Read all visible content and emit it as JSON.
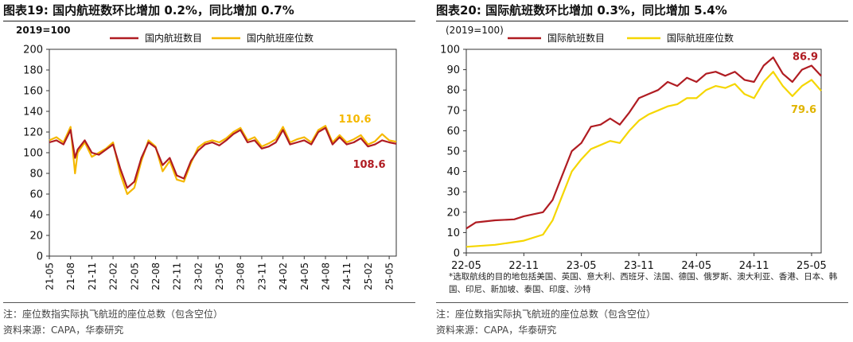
{
  "charts": [
    {
      "fig_title": "图表19:  国内航班数环比增加 0.2%，同比增加 0.7%",
      "note": "注：座位数指实际执飞航班的座位总数（包含空位）",
      "source": "资料来源：CAPA，华泰研究",
      "colors": {
        "flights": "#b01c22",
        "seats": "#f5b800"
      },
      "chart_data": {
        "type": "line",
        "ylabel": "2019=100",
        "ylim": [
          0,
          200
        ],
        "yticks": [
          0,
          20,
          40,
          60,
          80,
          100,
          120,
          140,
          160,
          180,
          200
        ],
        "xlim": [
          "2021-05",
          "2025-06"
        ],
        "xtick_labels": [
          "21-05",
          "21-08",
          "21-11",
          "22-02",
          "22-05",
          "22-08",
          "22-11",
          "23-02",
          "23-05",
          "23-08",
          "23-11",
          "24-02",
          "24-05",
          "24-08",
          "24-11",
          "25-02",
          "25-05"
        ],
        "legend": {
          "placement": "top-center",
          "entries": [
            "国内航班数目",
            "国内航班座位数"
          ]
        },
        "series": [
          {
            "name": "国内航班数目",
            "color": "#b01c22",
            "points": [
              [
                "2021-05",
                110
              ],
              [
                "2021-06",
                112
              ],
              [
                "2021-07",
                108
              ],
              [
                "2021-08",
                122
              ],
              [
                "2021-08-20",
                95
              ],
              [
                "2021-09",
                103
              ],
              [
                "2021-10",
                112
              ],
              [
                "2021-11",
                100
              ],
              [
                "2021-12",
                98
              ],
              [
                "2022-01",
                103
              ],
              [
                "2022-02",
                108
              ],
              [
                "2022-03",
                85
              ],
              [
                "2022-04",
                66
              ],
              [
                "2022-05",
                72
              ],
              [
                "2022-06",
                95
              ],
              [
                "2022-07",
                110
              ],
              [
                "2022-08",
                105
              ],
              [
                "2022-09",
                88
              ],
              [
                "2022-10",
                95
              ],
              [
                "2022-11",
                78
              ],
              [
                "2022-12",
                75
              ],
              [
                "2023-01",
                92
              ],
              [
                "2023-02",
                102
              ],
              [
                "2023-03",
                108
              ],
              [
                "2023-04",
                110
              ],
              [
                "2023-05",
                107
              ],
              [
                "2023-06",
                112
              ],
              [
                "2023-07",
                118
              ],
              [
                "2023-08",
                122
              ],
              [
                "2023-09",
                110
              ],
              [
                "2023-10",
                112
              ],
              [
                "2023-11",
                104
              ],
              [
                "2023-12",
                106
              ],
              [
                "2024-01",
                110
              ],
              [
                "2024-02",
                122
              ],
              [
                "2024-03",
                108
              ],
              [
                "2024-04",
                110
              ],
              [
                "2024-05",
                112
              ],
              [
                "2024-06",
                108
              ],
              [
                "2024-07",
                120
              ],
              [
                "2024-08",
                124
              ],
              [
                "2024-09",
                108
              ],
              [
                "2024-10",
                115
              ],
              [
                "2024-11",
                108
              ],
              [
                "2024-12",
                110
              ],
              [
                "2025-01",
                114
              ],
              [
                "2025-02",
                106
              ],
              [
                "2025-03",
                108
              ],
              [
                "2025-04",
                112
              ],
              [
                "2025-05",
                110
              ],
              [
                "2025-06",
                108.6
              ]
            ]
          },
          {
            "name": "国内航班座位数",
            "color": "#f5b800",
            "points": [
              [
                "2021-05",
                112
              ],
              [
                "2021-06",
                115
              ],
              [
                "2021-07",
                110
              ],
              [
                "2021-08",
                125
              ],
              [
                "2021-08-20",
                80
              ],
              [
                "2021-09",
                100
              ],
              [
                "2021-10",
                110
              ],
              [
                "2021-11",
                96
              ],
              [
                "2021-12",
                100
              ],
              [
                "2022-01",
                104
              ],
              [
                "2022-02",
                110
              ],
              [
                "2022-03",
                80
              ],
              [
                "2022-04",
                60
              ],
              [
                "2022-05",
                66
              ],
              [
                "2022-06",
                92
              ],
              [
                "2022-07",
                112
              ],
              [
                "2022-08",
                106
              ],
              [
                "2022-09",
                82
              ],
              [
                "2022-10",
                92
              ],
              [
                "2022-11",
                74
              ],
              [
                "2022-12",
                72
              ],
              [
                "2023-01",
                90
              ],
              [
                "2023-02",
                105
              ],
              [
                "2023-03",
                110
              ],
              [
                "2023-04",
                112
              ],
              [
                "2023-05",
                110
              ],
              [
                "2023-06",
                114
              ],
              [
                "2023-07",
                120
              ],
              [
                "2023-08",
                124
              ],
              [
                "2023-09",
                112
              ],
              [
                "2023-10",
                115
              ],
              [
                "2023-11",
                106
              ],
              [
                "2023-12",
                109
              ],
              [
                "2024-01",
                113
              ],
              [
                "2024-02",
                125
              ],
              [
                "2024-03",
                110
              ],
              [
                "2024-04",
                113
              ],
              [
                "2024-05",
                115
              ],
              [
                "2024-06",
                110
              ],
              [
                "2024-07",
                122
              ],
              [
                "2024-08",
                126
              ],
              [
                "2024-09",
                110
              ],
              [
                "2024-10",
                117
              ],
              [
                "2024-11",
                110
              ],
              [
                "2024-12",
                113
              ],
              [
                "2025-01",
                117
              ],
              [
                "2025-02",
                108
              ],
              [
                "2025-03",
                111
              ],
              [
                "2025-04",
                118
              ],
              [
                "2025-05",
                112
              ],
              [
                "2025-06",
                110.6
              ]
            ]
          }
        ],
        "annotations": [
          {
            "text": "110.6",
            "series": "国内航班座位数",
            "value": 110.6,
            "date": "2025-06"
          },
          {
            "text": "108.6",
            "series": "国内航班数目",
            "value": 108.6,
            "date": "2025-06"
          }
        ]
      }
    },
    {
      "fig_title": "图表20:  国际航班数环比增加 0.3%，同比增加 5.4%",
      "note": "注：座位数指实际执飞航班的座位总数（包含空位）",
      "source": "资料来源：CAPA，华泰研究",
      "footnote": "*选取航线的目的地包括美国、英国、意大利、西班牙、法国、德国、俄罗斯、澳大利亚、香港、日本、韩国、印尼、新加坡、泰国、印度、沙特",
      "colors": {
        "flights": "#b01c22",
        "seats": "#f5d600"
      },
      "chart_data": {
        "type": "line",
        "ylabel": "(2019=100)",
        "ylim": [
          0,
          100
        ],
        "yticks": [
          0,
          10,
          20,
          30,
          40,
          50,
          60,
          70,
          80,
          90,
          100
        ],
        "xlim": [
          "2022-05",
          "2025-06"
        ],
        "xtick_labels": [
          "22-05",
          "22-11",
          "23-05",
          "23-11",
          "24-05",
          "24-11",
          "25-05"
        ],
        "legend": {
          "placement": "top-center",
          "entries": [
            "国际航班数目",
            "国际航班座位数"
          ]
        },
        "series": [
          {
            "name": "国际航班数目",
            "color": "#b01c22",
            "points": [
              [
                "2022-05",
                12
              ],
              [
                "2022-06",
                15
              ],
              [
                "2022-08",
                16
              ],
              [
                "2022-10",
                16.5
              ],
              [
                "2022-11",
                18
              ],
              [
                "2023-01",
                20
              ],
              [
                "2023-02",
                26
              ],
              [
                "2023-03",
                38
              ],
              [
                "2023-04",
                50
              ],
              [
                "2023-05",
                54
              ],
              [
                "2023-06",
                62
              ],
              [
                "2023-07",
                63
              ],
              [
                "2023-08",
                66
              ],
              [
                "2023-09",
                63
              ],
              [
                "2023-10",
                69
              ],
              [
                "2023-11",
                76
              ],
              [
                "2023-12",
                78
              ],
              [
                "2024-01",
                80
              ],
              [
                "2024-02",
                84
              ],
              [
                "2024-03",
                82
              ],
              [
                "2024-04",
                86
              ],
              [
                "2024-05",
                84
              ],
              [
                "2024-06",
                88
              ],
              [
                "2024-07",
                89
              ],
              [
                "2024-08",
                87
              ],
              [
                "2024-09",
                89
              ],
              [
                "2024-10",
                85
              ],
              [
                "2024-11",
                84
              ],
              [
                "2024-12",
                92
              ],
              [
                "2025-01",
                96
              ],
              [
                "2025-02",
                88
              ],
              [
                "2025-03",
                84
              ],
              [
                "2025-04",
                90
              ],
              [
                "2025-05",
                92
              ],
              [
                "2025-06",
                86.9
              ]
            ]
          },
          {
            "name": "国际航班座位数",
            "color": "#f5d600",
            "points": [
              [
                "2022-05",
                3
              ],
              [
                "2022-08",
                4
              ],
              [
                "2022-11",
                6
              ],
              [
                "2023-01",
                9
              ],
              [
                "2023-02",
                16
              ],
              [
                "2023-03",
                28
              ],
              [
                "2023-04",
                40
              ],
              [
                "2023-05",
                46
              ],
              [
                "2023-06",
                51
              ],
              [
                "2023-07",
                53
              ],
              [
                "2023-08",
                55
              ],
              [
                "2023-09",
                54
              ],
              [
                "2023-10",
                60
              ],
              [
                "2023-11",
                65
              ],
              [
                "2023-12",
                68
              ],
              [
                "2024-01",
                70
              ],
              [
                "2024-02",
                72
              ],
              [
                "2024-03",
                73
              ],
              [
                "2024-04",
                76
              ],
              [
                "2024-05",
                76
              ],
              [
                "2024-06",
                80
              ],
              [
                "2024-07",
                82
              ],
              [
                "2024-08",
                81
              ],
              [
                "2024-09",
                83
              ],
              [
                "2024-10",
                78
              ],
              [
                "2024-11",
                76
              ],
              [
                "2024-12",
                84
              ],
              [
                "2025-01",
                89
              ],
              [
                "2025-02",
                82
              ],
              [
                "2025-03",
                77
              ],
              [
                "2025-04",
                82
              ],
              [
                "2025-05",
                85
              ],
              [
                "2025-06",
                79.6
              ]
            ]
          }
        ],
        "annotations": [
          {
            "text": "86.9",
            "series": "国际航班数目",
            "value": 86.9,
            "date": "2025-06"
          },
          {
            "text": "79.6",
            "series": "国际航班座位数",
            "value": 79.6,
            "date": "2025-06"
          }
        ]
      }
    }
  ]
}
